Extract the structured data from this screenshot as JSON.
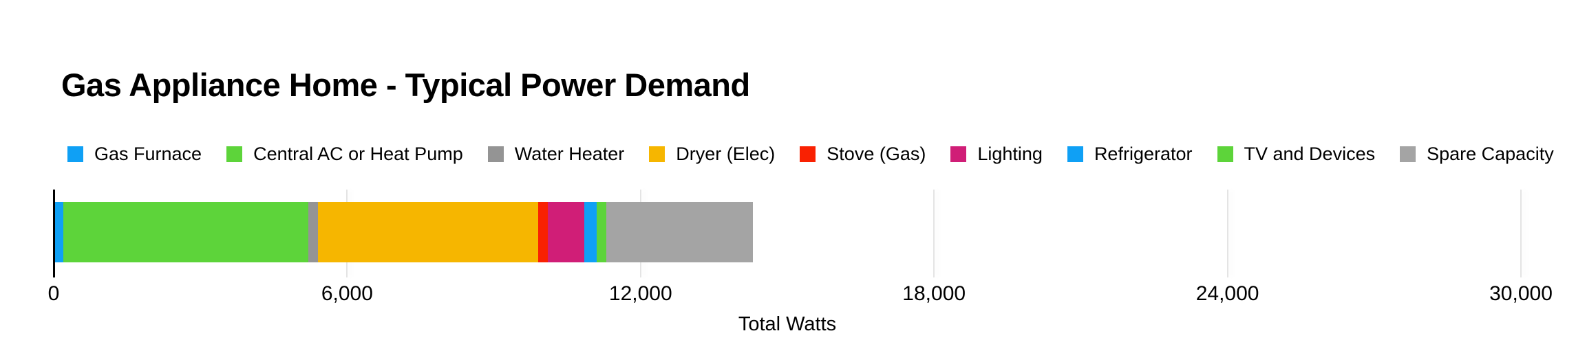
{
  "title": "Gas Appliance Home - Typical Power Demand",
  "axis": {
    "xlabel": "Total Watts",
    "xtick_labels": [
      "0",
      "6,000",
      "12,000",
      "18,000",
      "24,000",
      "30,000"
    ]
  },
  "chart_data": {
    "type": "bar",
    "orientation": "horizontal",
    "stacked": true,
    "title": "Gas Appliance Home - Typical Power Demand",
    "xlabel": "Total Watts",
    "xlim": [
      0,
      30000
    ],
    "xticks": [
      0,
      6000,
      12000,
      18000,
      24000,
      30000
    ],
    "xtick_labels": [
      "0",
      "6,000",
      "12,000",
      "18,000",
      "24,000",
      "30,000"
    ],
    "grid": true,
    "legend_position": "top",
    "total_watts": 14300,
    "series": [
      {
        "name": "Gas Furnace",
        "value": 200,
        "color": "#0fa0f5"
      },
      {
        "name": "Central AC or Heat Pump",
        "value": 5000,
        "color": "#5dd43a"
      },
      {
        "name": "Water Heater",
        "value": 200,
        "color": "#949494"
      },
      {
        "name": "Dryer (Elec)",
        "value": 4500,
        "color": "#f6b600"
      },
      {
        "name": "Stove (Gas)",
        "value": 200,
        "color": "#f92102"
      },
      {
        "name": "Lighting",
        "value": 750,
        "color": "#d01e77"
      },
      {
        "name": "Refrigerator",
        "value": 250,
        "color": "#0fa0f5"
      },
      {
        "name": "TV and Devices",
        "value": 200,
        "color": "#5dd43a"
      },
      {
        "name": "Spare Capacity",
        "value": 3000,
        "color": "#a4a4a4"
      }
    ]
  }
}
